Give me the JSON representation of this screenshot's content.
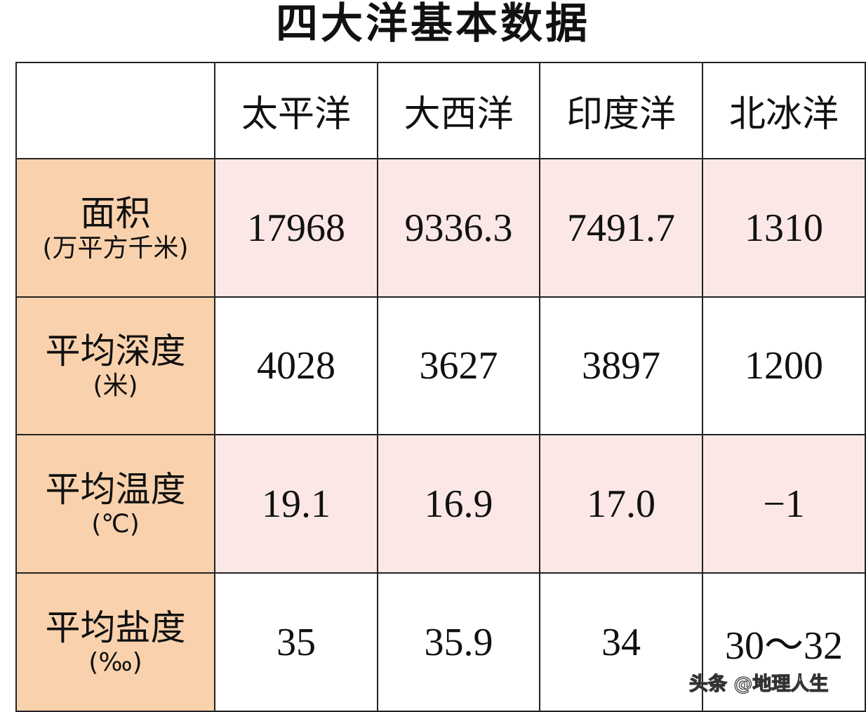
{
  "title": "四大洋基本数据",
  "columns": [
    "",
    "太平洋",
    "大西洋",
    "印度洋",
    "北冰洋"
  ],
  "rows": [
    {
      "label": "面积",
      "unit": "(万平方千米)",
      "values": [
        "17968",
        "9336.3",
        "7491.7",
        "1310"
      ]
    },
    {
      "label": "平均深度",
      "unit": "(米)",
      "values": [
        "4028",
        "3627",
        "3897",
        "1200"
      ]
    },
    {
      "label": "平均温度",
      "unit": "(℃)",
      "values": [
        "19.1",
        "16.9",
        "17.0",
        "−1"
      ]
    },
    {
      "label": "平均盐度",
      "unit": "(‰)",
      "values": [
        "35",
        "35.9",
        "34",
        "30～32"
      ]
    }
  ],
  "watermark": "头条 @地理人生",
  "colors": {
    "label_bg": "#f9d2ad",
    "pink_row_bg": "#fbe8e6",
    "border": "#222222"
  }
}
